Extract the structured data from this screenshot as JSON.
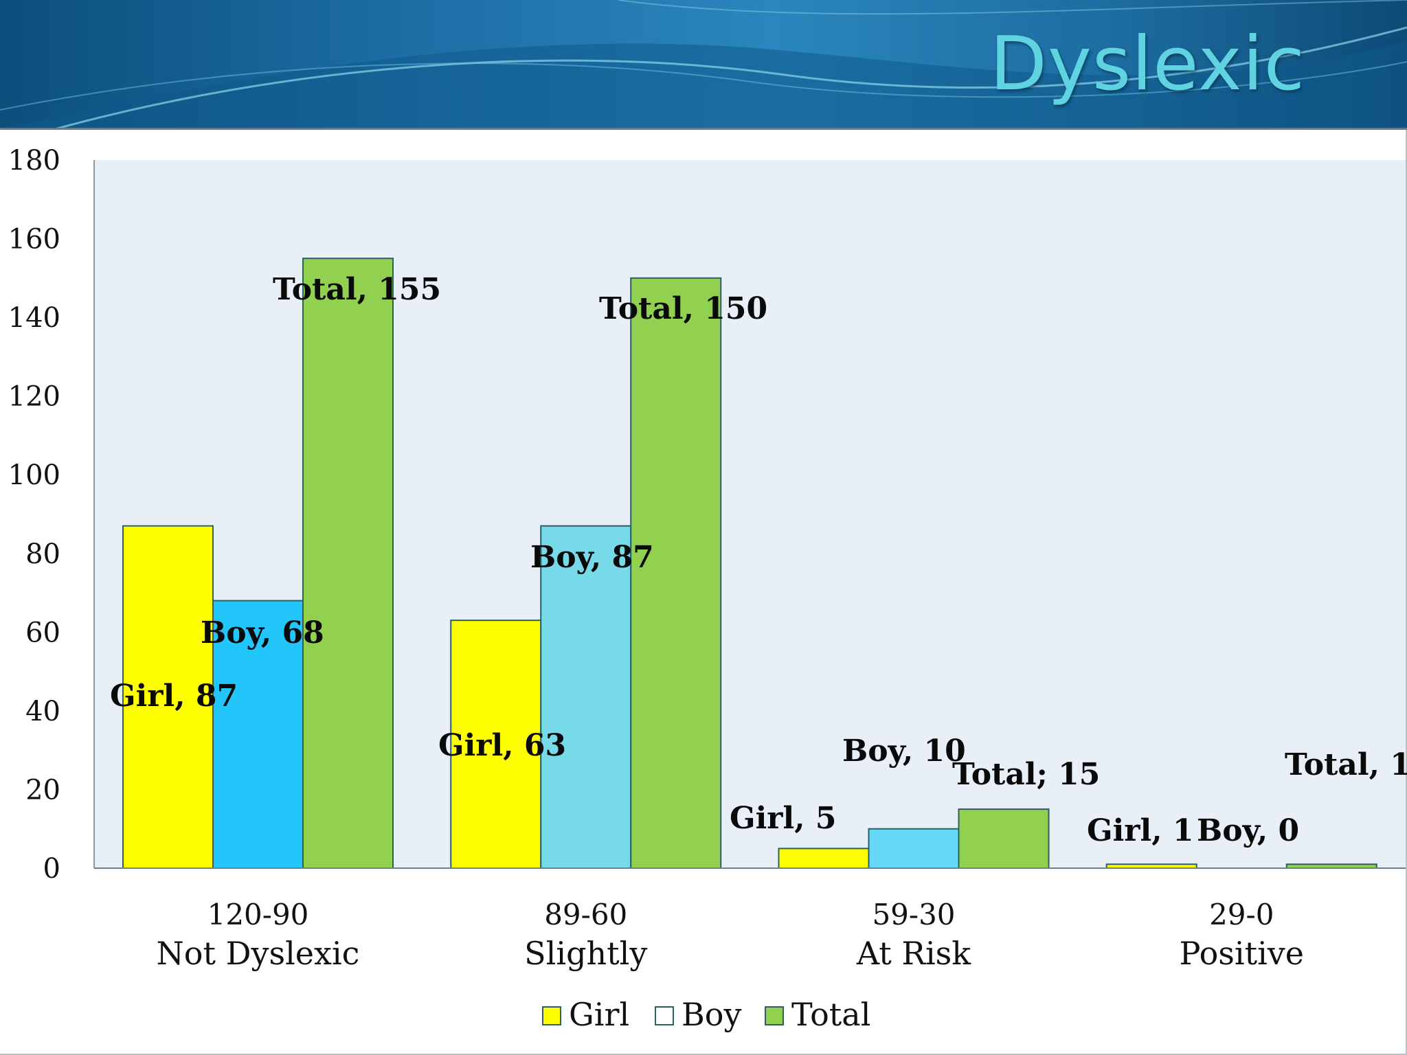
{
  "slide": {
    "title": "Dyslexic"
  },
  "chart_data": {
    "type": "bar",
    "categories": [
      [
        "120-90",
        "Not Dyslexic"
      ],
      [
        "89-60",
        "Slightly"
      ],
      [
        "59-30",
        "At Risk"
      ],
      [
        "29-0",
        "Positive"
      ]
    ],
    "series": [
      {
        "name": "Girl",
        "color": "#ffff00",
        "values": [
          87,
          63,
          5,
          1
        ],
        "data_labels": [
          "Girl, 87",
          "Girl, 63",
          "Girl, 5",
          "Girl, 1"
        ]
      },
      {
        "name": "Boy",
        "colors": [
          "#22c6fa",
          "#78dae8",
          "#66d9f6",
          "#66d9f6"
        ],
        "legend_color": "#ffffff",
        "values": [
          68,
          87,
          10,
          0
        ],
        "data_labels": [
          "Boy, 68",
          "Boy, 87",
          "Boy, 10",
          "Boy, 0"
        ]
      },
      {
        "name": "Total",
        "color": "#92d050",
        "values": [
          155,
          150,
          15,
          1
        ],
        "data_labels": [
          "Total, 155",
          "Total, 150",
          "Total; 15",
          "Total, 1"
        ]
      }
    ],
    "y_ticks": [
      "0",
      "20",
      "40",
      "60",
      "80",
      "100",
      "120",
      "140",
      "160",
      "180"
    ],
    "ylim": [
      0,
      180
    ],
    "grid": false,
    "plot_background": "#e8eff7",
    "legend_position": "bottom"
  }
}
